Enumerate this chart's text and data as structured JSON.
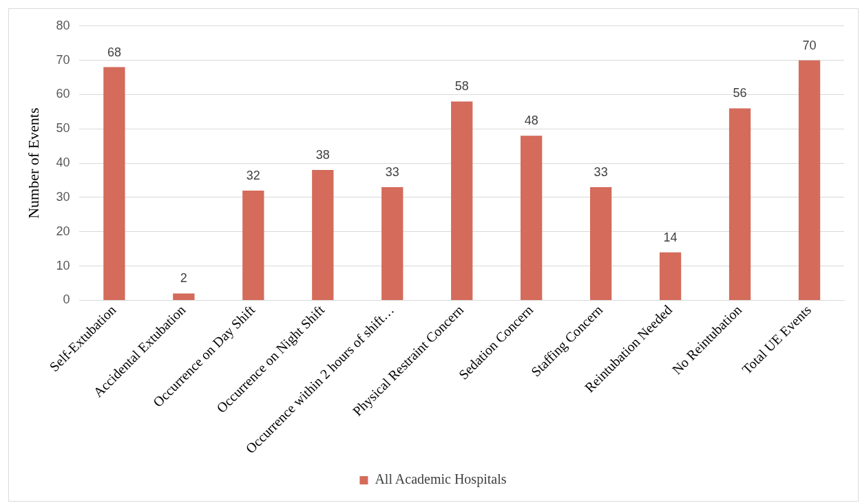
{
  "chart_data": {
    "type": "bar",
    "ylabel": "Number of Events",
    "categories": [
      "Self-Extubation",
      "Accidental Extubation",
      "Occurrence on Day Shift",
      "Occurrence on Night Shift",
      "Occurrence within 2 hours of shift…",
      "Physical Restraint Concern",
      "Sedation Concern",
      "Staffing Concern",
      "Reintubation Needed",
      "No Reintubation",
      "Total UE Events"
    ],
    "series": [
      {
        "name": "All Academic Hospitals",
        "color": "#d46b5b",
        "values": [
          68,
          2,
          32,
          38,
          33,
          58,
          48,
          33,
          14,
          56,
          70
        ]
      }
    ],
    "ylim": [
      0,
      80
    ],
    "yticks": [
      0,
      10,
      20,
      30,
      40,
      50,
      60,
      70,
      80
    ],
    "grid": "y",
    "legend": "bottom",
    "data_labels": true
  }
}
